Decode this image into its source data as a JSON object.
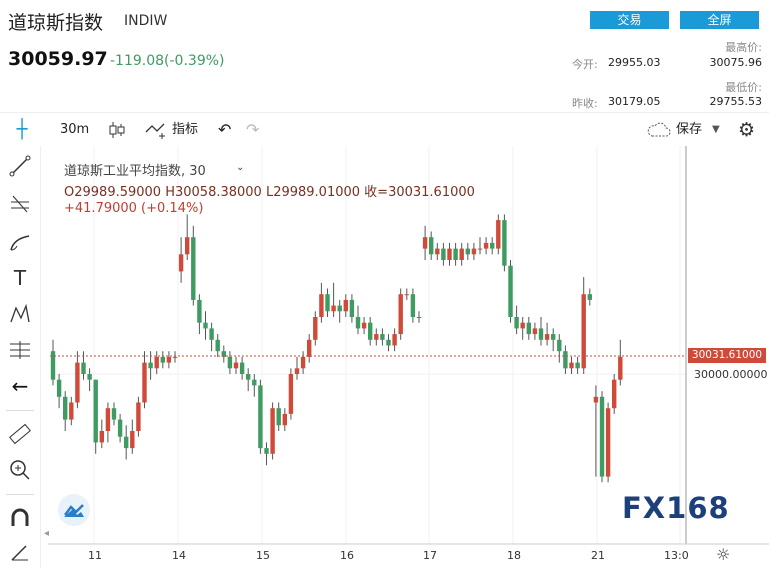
{
  "header": {
    "title": "道琼斯指数",
    "code": "INDIW",
    "price": "30059.97",
    "change": "-119.08(-0.39%)",
    "trade_btn": "交易",
    "fullscreen_btn": "全屏",
    "stats": {
      "open_label": "今开:",
      "open_value": "29955.03",
      "prev_close_label": "昨收:",
      "prev_close_value": "30179.05",
      "high_label": "最高价:",
      "high_value": "30075.96",
      "low_label": "最低价:",
      "low_value": "29755.53"
    }
  },
  "toolbar": {
    "interval": "30m",
    "indicators_label": "指标",
    "save_label": "保存"
  },
  "legend": {
    "symbol_line": "道琼斯工业平均指数, 30",
    "ohlc_line": "O29989.59000  H30058.38000  L29989.01000  收=30031.61000",
    "change_line": "+41.79000 (+0.14%)"
  },
  "axis": {
    "price_tag": "30031.61000",
    "price_level": "30000.00000",
    "x_ticks": [
      "11",
      "14",
      "15",
      "16",
      "17",
      "18",
      "21",
      "13:0"
    ]
  },
  "colors": {
    "up": "#d04a3a",
    "down": "#3e9b62",
    "accent": "#1a9ad6"
  },
  "watermark": "FX168",
  "chart_data": {
    "type": "candlestick",
    "interval": "30m",
    "x_ticks": [
      "11",
      "14",
      "15",
      "16",
      "17",
      "18",
      "21"
    ],
    "last_close": 30031.61,
    "reference_price": 30000.0,
    "candles": [
      [
        30040,
        29990,
        30060,
        29980
      ],
      [
        29990,
        29960,
        30000,
        29940
      ],
      [
        29960,
        29920,
        29970,
        29900
      ],
      [
        29920,
        29950,
        29960,
        29910
      ],
      [
        29950,
        30020,
        30040,
        29940
      ],
      [
        30020,
        30000,
        30040,
        29990
      ],
      [
        30000,
        29990,
        30010,
        29970
      ],
      [
        29990,
        29880,
        29990,
        29860
      ],
      [
        29880,
        29900,
        29920,
        29870
      ],
      [
        29900,
        29940,
        29950,
        29880
      ],
      [
        29940,
        29920,
        29950,
        29910
      ],
      [
        29920,
        29890,
        29930,
        29880
      ],
      [
        29890,
        29870,
        29910,
        29850
      ],
      [
        29870,
        29900,
        29920,
        29860
      ],
      [
        29900,
        29950,
        29960,
        29890
      ],
      [
        29950,
        30020,
        30040,
        29940
      ],
      [
        30020,
        30010,
        30040,
        29990
      ],
      [
        30010,
        30030,
        30040,
        30000
      ],
      [
        30030,
        30020,
        30040,
        30010
      ],
      [
        30020,
        30030,
        30040,
        30010
      ],
      [
        30030,
        30030,
        30040,
        30020
      ],
      [
        30180,
        30210,
        30240,
        30160
      ],
      [
        30210,
        30240,
        30280,
        30200
      ],
      [
        30240,
        30130,
        30260,
        30120
      ],
      [
        30130,
        30090,
        30140,
        30070
      ],
      [
        30090,
        30080,
        30110,
        30060
      ],
      [
        30080,
        30060,
        30090,
        30040
      ],
      [
        30060,
        30040,
        30070,
        30030
      ],
      [
        30040,
        30030,
        30050,
        30020
      ],
      [
        30030,
        30010,
        30040,
        30000
      ],
      [
        30010,
        30020,
        30030,
        30000
      ],
      [
        30020,
        30000,
        30030,
        29990
      ],
      [
        30000,
        29990,
        30010,
        29970
      ],
      [
        29990,
        29980,
        30000,
        29960
      ],
      [
        29980,
        29870,
        29990,
        29860
      ],
      [
        29870,
        29860,
        29880,
        29840
      ],
      [
        29860,
        29940,
        29950,
        29850
      ],
      [
        29940,
        29910,
        29950,
        29900
      ],
      [
        29910,
        29930,
        29940,
        29900
      ],
      [
        29930,
        30000,
        30010,
        29920
      ],
      [
        30000,
        30010,
        30030,
        29990
      ],
      [
        30010,
        30030,
        30040,
        30000
      ],
      [
        30030,
        30060,
        30070,
        30020
      ],
      [
        30060,
        30100,
        30110,
        30050
      ],
      [
        30100,
        30140,
        30160,
        30090
      ],
      [
        30140,
        30110,
        30150,
        30100
      ],
      [
        30110,
        30120,
        30160,
        30100
      ],
      [
        30120,
        30110,
        30130,
        30090
      ],
      [
        30110,
        30130,
        30140,
        30100
      ],
      [
        30130,
        30100,
        30140,
        30090
      ],
      [
        30100,
        30080,
        30120,
        30070
      ],
      [
        30080,
        30090,
        30100,
        30070
      ],
      [
        30090,
        30060,
        30100,
        30050
      ],
      [
        30060,
        30070,
        30080,
        30050
      ],
      [
        30070,
        30060,
        30080,
        30050
      ],
      [
        30060,
        30050,
        30070,
        30040
      ],
      [
        30050,
        30070,
        30080,
        30040
      ],
      [
        30070,
        30140,
        30150,
        30060
      ],
      [
        30140,
        30140,
        30150,
        30130
      ],
      [
        30140,
        30100,
        30150,
        30090
      ],
      [
        30100,
        30100,
        30110,
        30090
      ],
      [
        30220,
        30240,
        30260,
        30200
      ],
      [
        30240,
        30210,
        30250,
        30200
      ],
      [
        30210,
        30220,
        30230,
        30200
      ],
      [
        30220,
        30200,
        30230,
        30190
      ],
      [
        30200,
        30220,
        30230,
        30190
      ],
      [
        30220,
        30200,
        30230,
        30190
      ],
      [
        30200,
        30220,
        30230,
        30190
      ],
      [
        30220,
        30210,
        30230,
        30200
      ],
      [
        30210,
        30220,
        30230,
        30200
      ],
      [
        30220,
        30220,
        30240,
        30210
      ],
      [
        30220,
        30230,
        30240,
        30210
      ],
      [
        30230,
        30220,
        30240,
        30210
      ],
      [
        30220,
        30270,
        30280,
        30210
      ],
      [
        30270,
        30190,
        30280,
        30180
      ],
      [
        30190,
        30100,
        30200,
        30090
      ],
      [
        30100,
        30080,
        30120,
        30070
      ],
      [
        30080,
        30090,
        30100,
        30060
      ],
      [
        30090,
        30070,
        30100,
        30060
      ],
      [
        30070,
        30080,
        30090,
        30060
      ],
      [
        30080,
        30060,
        30100,
        30050
      ],
      [
        30060,
        30070,
        30090,
        30050
      ],
      [
        30070,
        30060,
        30080,
        30040
      ],
      [
        30060,
        30040,
        30070,
        30020
      ],
      [
        30040,
        30010,
        30050,
        30000
      ],
      [
        30010,
        30020,
        30030,
        30000
      ],
      [
        30020,
        30010,
        30030,
        30000
      ],
      [
        30010,
        30140,
        30170,
        30000
      ],
      [
        30140,
        30130,
        30150,
        30120
      ],
      [
        29950,
        29960,
        29980,
        29820
      ],
      [
        29960,
        29820,
        29970,
        29810
      ],
      [
        29820,
        29940,
        29950,
        29810
      ],
      [
        29940,
        29990,
        30000,
        29930
      ],
      [
        29990,
        30030,
        30060,
        29980
      ]
    ]
  }
}
